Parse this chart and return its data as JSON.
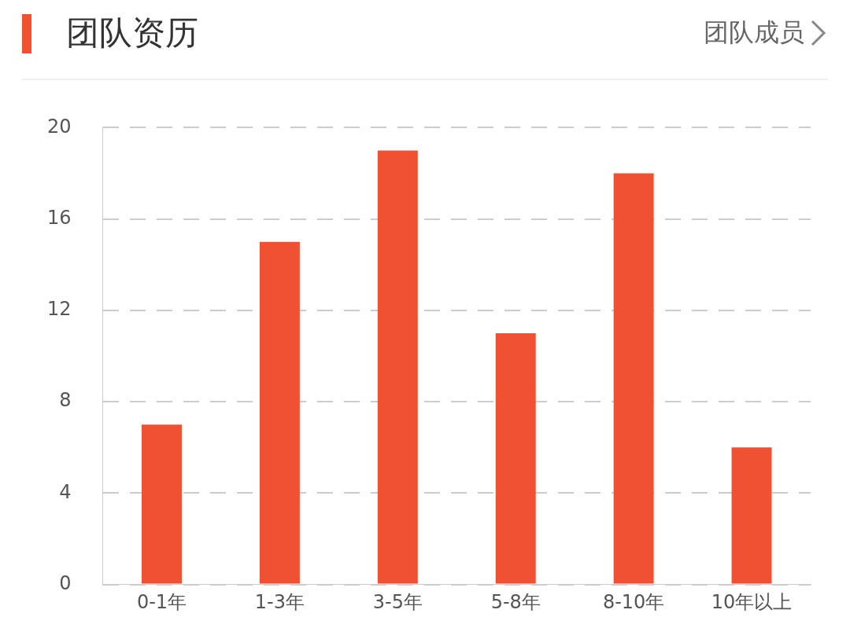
{
  "chart_data": {
    "type": "bar",
    "title": "团队资历",
    "annotations": [
      "团队成员"
    ],
    "categories": [
      "0-1年",
      "1-3年",
      "3-5年",
      "5-8年",
      "8-10年",
      "10年以上"
    ],
    "values": [
      7,
      15,
      19,
      11,
      18,
      6
    ],
    "color": "#f05133",
    "ylim": [
      0,
      20
    ],
    "yticks": [
      0,
      4,
      8,
      12,
      16,
      20
    ],
    "grid": "y",
    "legend": false
  }
}
